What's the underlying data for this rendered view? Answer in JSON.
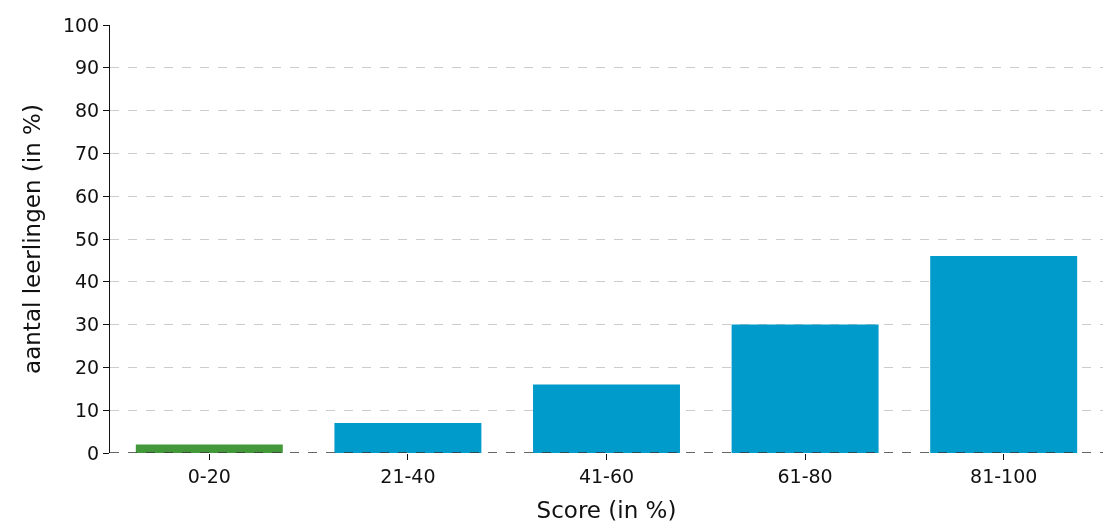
{
  "chart_data": {
    "type": "bar",
    "xlabel": "Score (in %)",
    "ylabel": "aantal leerlingen (in %)",
    "categories": [
      "0-20",
      "21-40",
      "41-60",
      "61-80",
      "81-100"
    ],
    "values": [
      2,
      7,
      16,
      30,
      46
    ],
    "colors": [
      "#43983a",
      "#009bcb",
      "#009bcb",
      "#009bcb",
      "#009bcb"
    ],
    "ylim": [
      0,
      100
    ],
    "yticks": [
      0,
      10,
      20,
      30,
      40,
      50,
      60,
      70,
      80,
      90,
      100
    ],
    "grid": "y",
    "ref_lines": [
      {
        "axis": "y",
        "value": 0,
        "color": "#333333",
        "line_style": "dashed"
      }
    ]
  }
}
